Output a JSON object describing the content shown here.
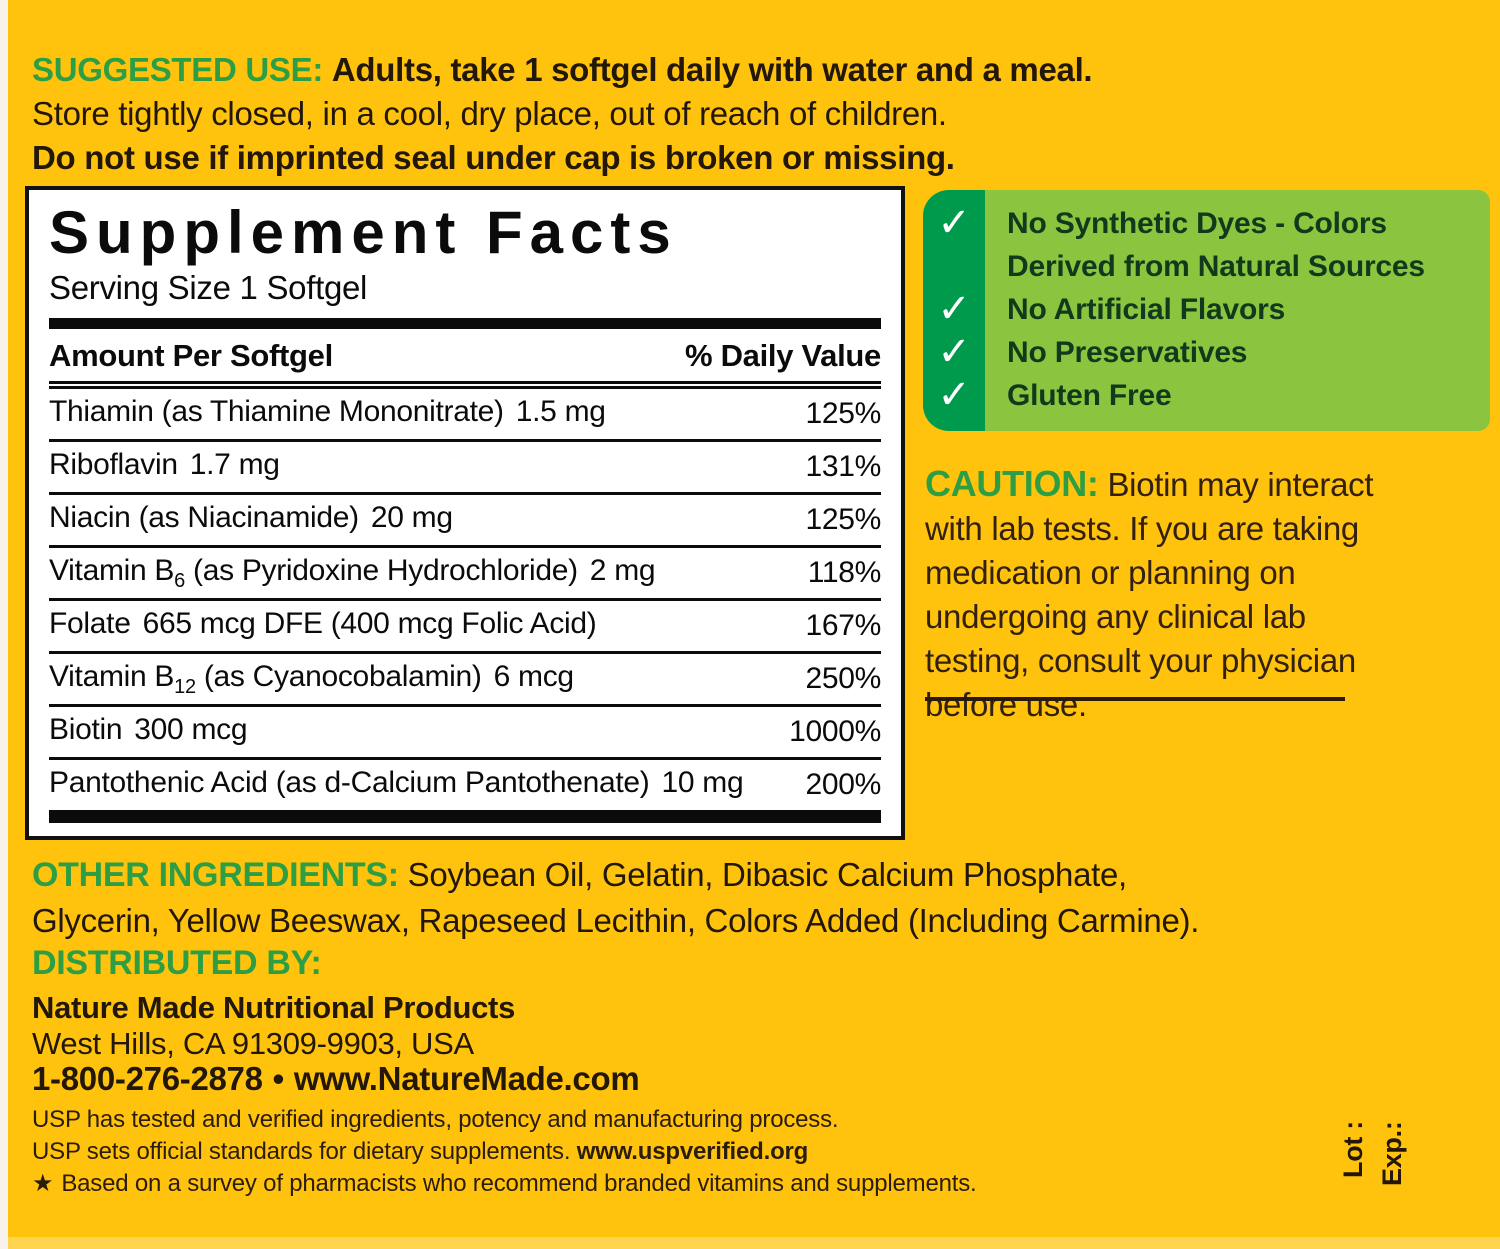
{
  "colors": {
    "background_yellow": "#FFC30D",
    "edge_strip_white": "#F7F3EC",
    "bottom_strip_yellow": "#FFD44F",
    "heading_green": "#2E9E44",
    "panel_dark_green": "#009A4C",
    "panel_light_green": "#8BC53F",
    "panel_text_green": "#12391C",
    "text_dark": "#221708",
    "caution_text_brown": "#33200E",
    "facts_bg_white": "#FFFFFF",
    "facts_border_black": "#111111"
  },
  "suggested_use": {
    "label": "SUGGESTED USE:",
    "line1_rest": "Adults, take 1 softgel daily with water and a meal.",
    "line2": "Store tightly closed, in a cool, dry place, out of reach of children.",
    "line3": "Do not use if imprinted seal under cap is broken or missing."
  },
  "facts": {
    "title": "Supplement Facts",
    "serving_size": "Serving Size 1 Softgel",
    "header": {
      "amount": "Amount Per Softgel",
      "daily_value": "% Daily Value"
    },
    "rows": [
      {
        "pre": "Thiamin (as Thiamine Mononitrate)",
        "sub": "",
        "post": "",
        "amount": "1.5 mg",
        "dv": "125%"
      },
      {
        "pre": "Riboflavin",
        "sub": "",
        "post": "",
        "amount": "1.7 mg",
        "dv": "131%"
      },
      {
        "pre": "Niacin (as Niacinamide)",
        "sub": "",
        "post": "",
        "amount": "20 mg",
        "dv": "125%"
      },
      {
        "pre": "Vitamin B",
        "sub": "6",
        "post": " (as Pyridoxine Hydrochloride)",
        "amount": "2 mg",
        "dv": "118%"
      },
      {
        "pre": "Folate",
        "sub": "",
        "post": "",
        "amount": "665 mcg DFE (400 mcg Folic Acid)",
        "dv": "167%"
      },
      {
        "pre": "Vitamin B",
        "sub": "12",
        "post": " (as Cyanocobalamin)",
        "amount": "6 mcg",
        "dv": "250%"
      },
      {
        "pre": "Biotin",
        "sub": "",
        "post": "",
        "amount": "300 mcg",
        "dv": "1000%"
      },
      {
        "pre": "Pantothenic Acid (as d-Calcium Pantothenate)",
        "sub": "",
        "post": "",
        "amount": "10 mg",
        "dv": "200%"
      }
    ]
  },
  "checks": {
    "mark": "✓",
    "items": [
      {
        "text": "No Synthetic Dyes - Colors Derived from Natural Sources"
      },
      {
        "text": "No Artificial Flavors"
      },
      {
        "text": "No Preservatives"
      },
      {
        "text": "Gluten Free"
      }
    ]
  },
  "caution": {
    "label": "CAUTION:",
    "text": "Biotin may interact with lab tests. If you are taking medication or planning on undergoing any clinical lab testing, consult your physician before use."
  },
  "other": {
    "label": "OTHER INGREDIENTS:",
    "text": "Soybean Oil, Gelatin, Dibasic Calcium Phosphate, Glycerin, Yellow Beeswax, Rapeseed Lecithin, Colors Added (Including Carmine)."
  },
  "distributed": {
    "label": "DISTRIBUTED BY:",
    "company": "Nature Made Nutritional Products",
    "address": "West Hills, CA 91309-9903, USA",
    "phone": "1-800-276-2878",
    "separator": "•",
    "website": "www.NatureMade.com"
  },
  "usp": {
    "line1": "USP has tested and verified ingredients, potency and manufacturing process.",
    "line2_text": "USP sets official standards for dietary supplements.",
    "line2_url": "www.uspverified.org",
    "star": "★",
    "line3": "Based on a survey of pharmacists who recommend branded vitamins and supplements."
  },
  "lot_exp": {
    "lot": "Lot :",
    "exp": "Exp.:"
  }
}
